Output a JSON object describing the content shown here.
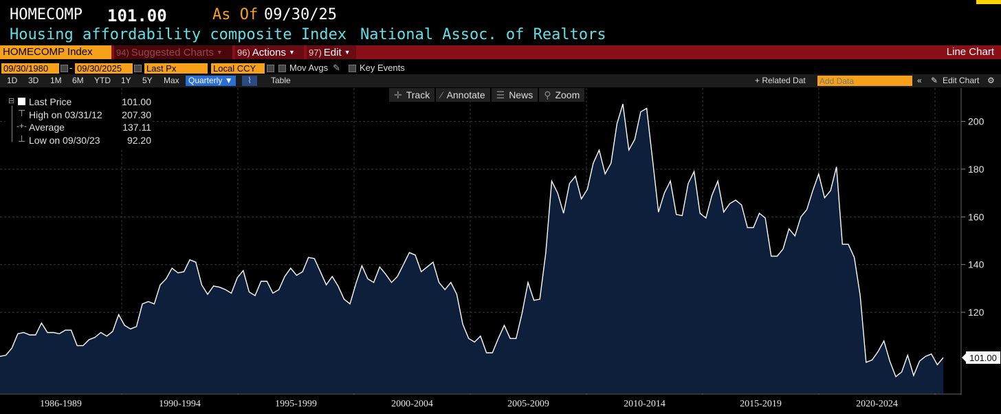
{
  "header": {
    "ticker": "HOMECOMP",
    "price": "101.00",
    "as_of_label": "As Of",
    "as_of_date": "09/30/25",
    "description": "Housing affordability composite Index",
    "source": "National Assoc. of Realtors"
  },
  "menubar": {
    "security": "HOMECOMP Index",
    "suggested_num": "94)",
    "suggested": "Suggested Charts",
    "actions_num": "96)",
    "actions": "Actions",
    "edit_num": "97)",
    "edit": "Edit",
    "chart_type": "Line Chart"
  },
  "controls": {
    "start_date": "09/30/1980",
    "dash": "-",
    "end_date": "09/30/2025",
    "field": "Last Px",
    "currency": "Local CCY",
    "mov_avgs": "Mov Avgs",
    "key_events": "Key Events"
  },
  "periods": [
    "1D",
    "3D",
    "1M",
    "6M",
    "YTD",
    "1Y",
    "5Y",
    "Max"
  ],
  "frequency": "Quarterly",
  "table_label": "Table",
  "related_data": "+ Related Dat",
  "add_data_placeholder": "Add Data",
  "edit_chart": "Edit Chart",
  "tools": {
    "track": "Track",
    "annotate": "Annotate",
    "news": "News",
    "zoom": "Zoom"
  },
  "legend": {
    "last_label": "Last Price",
    "last_value": "101.00",
    "high_label": "High on 03/31/12",
    "high_value": "207.30",
    "avg_label": "Average",
    "avg_value": "137.11",
    "low_label": "Low on 09/30/23",
    "low_value": "92.20"
  },
  "colors": {
    "background": "#000000",
    "line": "#ffffff",
    "area": "#0e1f3c",
    "accent": "#f7a11a",
    "menubar": "#8b0f17",
    "cyan": "#5fe0e8"
  },
  "chart_data": {
    "type": "area",
    "frequency": "Quarterly",
    "x_start": "1980",
    "x_end": "2025",
    "xlabel": "",
    "ylabel": "",
    "ylim": [
      86,
      214
    ],
    "yticks": [
      120,
      140,
      160,
      180,
      200
    ],
    "x_ticklabels": [
      "1986-1989",
      "1990-1994",
      "1995-1999",
      "2000-2004",
      "2005-2009",
      "2010-2014",
      "2015-2019",
      "2020-2024"
    ],
    "last_value_label": "101.00",
    "grid": true,
    "series": [
      {
        "values": [
          101.5,
          102,
          105,
          111,
          111.5,
          110.5,
          110.5,
          115.5,
          111.5,
          111.5,
          111,
          112.5,
          112.5,
          106,
          106,
          108.5,
          109.5,
          111.5,
          110,
          112,
          119,
          114.5,
          113,
          114,
          123.5,
          124.5,
          123.5,
          131.5,
          134,
          138.5,
          136.5,
          137,
          142,
          141,
          131.5,
          127.5,
          131,
          130.5,
          129.5,
          128,
          134.5,
          137.5,
          128.5,
          127,
          133,
          133,
          128,
          129.5,
          135,
          138.5,
          135.5,
          137,
          143,
          142.5,
          137,
          131.5,
          135,
          131,
          125.5,
          123.5,
          132,
          139.5,
          134,
          132.5,
          139,
          136,
          132.5,
          135,
          140,
          145,
          144,
          137,
          139,
          141,
          132.5,
          129.5,
          132.5,
          127.5,
          115,
          109,
          107.5,
          110,
          103,
          103,
          109,
          114.5,
          109,
          109,
          119.5,
          132.5,
          125,
          125.5,
          145,
          175,
          170,
          161.5,
          174,
          177,
          167.5,
          171.5,
          182.5,
          188,
          178,
          182.5,
          199,
          207.3,
          188,
          192.5,
          204,
          205.5,
          184,
          162,
          170,
          175,
          161,
          160.5,
          174,
          179,
          161.5,
          159.5,
          169,
          175,
          162,
          165.5,
          167,
          165,
          155.5,
          155.5,
          161.5,
          159.5,
          143.5,
          143.5,
          146.5,
          155,
          152,
          160,
          163,
          171,
          178,
          168,
          171,
          181,
          148.5,
          148.5,
          143,
          127,
          99,
          100,
          103.5,
          108,
          99.5,
          93,
          95,
          102,
          93.5,
          99.5,
          101.5,
          102.5,
          98,
          101
        ]
      }
    ]
  }
}
